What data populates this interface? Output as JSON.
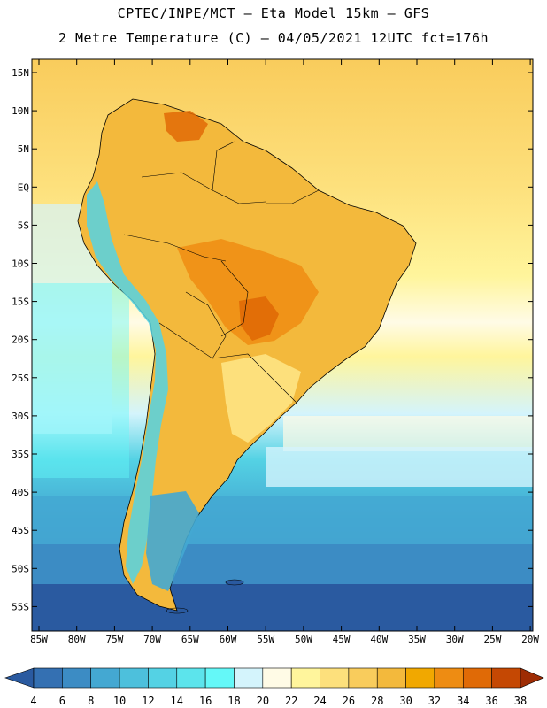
{
  "title": {
    "line1": "CPTEC/INPE/MCT –  Eta Model 15km – GFS",
    "line2": "2 Metre Temperature (C) – 04/05/2021 12UTC fct=176h"
  },
  "axes": {
    "lat_labels": [
      "15N",
      "10N",
      "5N",
      "EQ",
      "5S",
      "10S",
      "15S",
      "20S",
      "25S",
      "30S",
      "35S",
      "40S",
      "45S",
      "50S",
      "55S"
    ],
    "lon_labels": [
      "85W",
      "80W",
      "75W",
      "70W",
      "65W",
      "60W",
      "55W",
      "50W",
      "45W",
      "40W",
      "35W",
      "30W",
      "25W",
      "20W"
    ]
  },
  "colorbar": {
    "labels": [
      "4",
      "6",
      "8",
      "10",
      "12",
      "14",
      "16",
      "18",
      "20",
      "22",
      "24",
      "26",
      "28",
      "30",
      "32",
      "34",
      "36",
      "38"
    ],
    "colors": [
      "#2a5aa0",
      "#3470b2",
      "#3c8cc4",
      "#44a8d2",
      "#4dc0dc",
      "#54d2e4",
      "#5ce4ec",
      "#64f8f8",
      "#d4f4fc",
      "#fffbe6",
      "#fff59c",
      "#fde07c",
      "#f9cc5c",
      "#f3b93c",
      "#f1a800",
      "#ee8c12",
      "#e06a06",
      "#c54803",
      "#9e2c04"
    ]
  }
}
